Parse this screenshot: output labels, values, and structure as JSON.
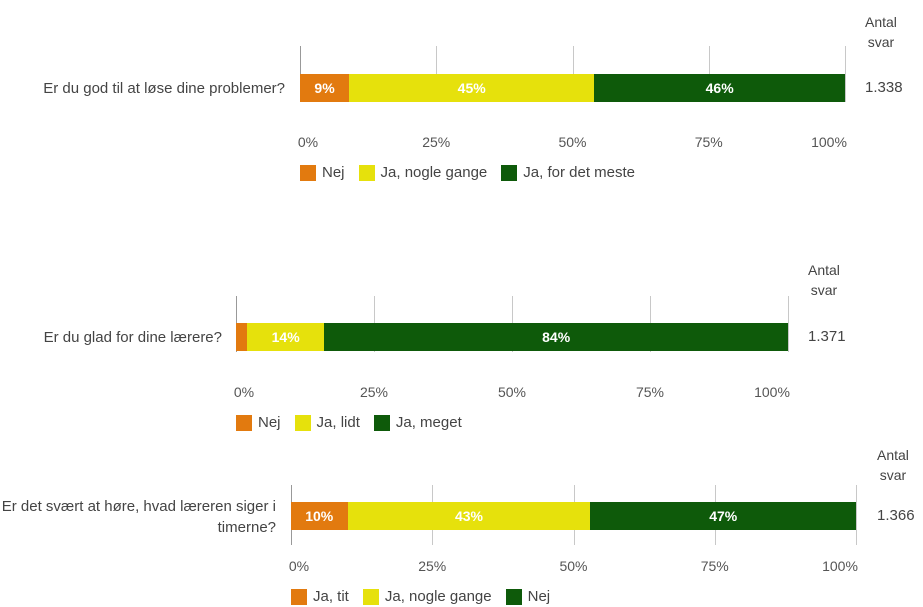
{
  "answers_header": [
    "Antal",
    "svar"
  ],
  "x_ticks": [
    "0%",
    "25%",
    "50%",
    "75%",
    "100%"
  ],
  "colors": {
    "orange": "#e27a0f",
    "yellow": "#e6e10c",
    "dark_green": "#0e5a0a"
  },
  "chart_data": [
    {
      "type": "bar",
      "question": "Er du god til at løse dine problemer?",
      "n_answers": "1.338",
      "xlim": [
        0,
        100
      ],
      "series": [
        {
          "name": "Nej",
          "value": 9,
          "label": "9%",
          "color": "#e27a0f",
          "label_color": "#ffffff"
        },
        {
          "name": "Ja, nogle gange",
          "value": 45,
          "label": "45%",
          "color": "#e6e10c",
          "label_color": "#ffffff"
        },
        {
          "name": "Ja, for det meste",
          "value": 46,
          "label": "46%",
          "color": "#0e5a0a",
          "label_color": "#ffffff"
        }
      ]
    },
    {
      "type": "bar",
      "question": "Er du glad for dine lærere?",
      "n_answers": "1.371",
      "xlim": [
        0,
        100
      ],
      "series": [
        {
          "name": "Nej",
          "value": 2,
          "label": "",
          "color": "#e27a0f",
          "label_color": "#ffffff"
        },
        {
          "name": "Ja, lidt",
          "value": 14,
          "label": "14%",
          "color": "#e6e10c",
          "label_color": "#ffffff"
        },
        {
          "name": "Ja, meget",
          "value": 84,
          "label": "84%",
          "color": "#0e5a0a",
          "label_color": "#ffffff"
        }
      ]
    },
    {
      "type": "bar",
      "question": "Er det svært at høre, hvad læreren siger i timerne?",
      "n_answers": "1.366",
      "xlim": [
        0,
        100
      ],
      "series": [
        {
          "name": "Ja, tit",
          "value": 10,
          "label": "10%",
          "color": "#e27a0f",
          "label_color": "#ffffff"
        },
        {
          "name": "Ja, nogle gange",
          "value": 43,
          "label": "43%",
          "color": "#e6e10c",
          "label_color": "#ffffff"
        },
        {
          "name": "Nej",
          "value": 47,
          "label": "47%",
          "color": "#0e5a0a",
          "label_color": "#ffffff"
        }
      ]
    }
  ]
}
